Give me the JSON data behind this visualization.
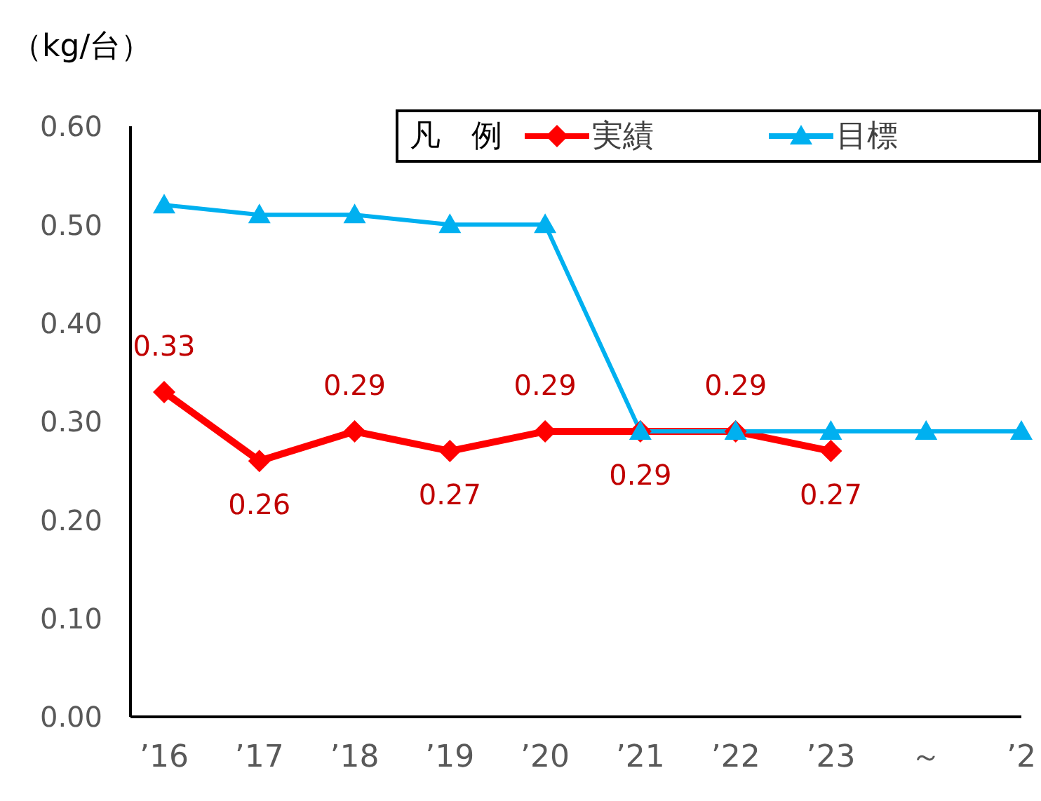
{
  "chart_data": {
    "type": "line",
    "ylabel": "（kg/台）",
    "legend_title": "凡　例",
    "legend": "top right",
    "categories": [
      "’16",
      "’17",
      "’18",
      "’19",
      "’20",
      "’21",
      "’22",
      "’23",
      "～",
      "’2"
    ],
    "series": [
      {
        "name": "実績",
        "color": "#ff0000",
        "marker": "diamond",
        "data_labels": true,
        "values": [
          0.33,
          0.26,
          0.29,
          0.27,
          0.29,
          0.29,
          0.29,
          0.27,
          null,
          null
        ]
      },
      {
        "name": "目標",
        "color": "#00b0f0",
        "marker": "triangle",
        "values": [
          0.52,
          0.51,
          0.51,
          0.5,
          0.5,
          0.29,
          0.29,
          0.29,
          0.29,
          0.29
        ]
      }
    ],
    "ylim": [
      0,
      0.6
    ],
    "yticks": [
      {
        "value": 0,
        "label": "0.00"
      },
      {
        "value": 0.1,
        "label": "0.10"
      },
      {
        "value": 0.2,
        "label": "0.20"
      },
      {
        "value": 0.3,
        "label": "0.30"
      },
      {
        "value": 0.4,
        "label": "0.40"
      },
      {
        "value": 0.5,
        "label": "0.50"
      },
      {
        "value": 0.6,
        "label": "0.60"
      }
    ],
    "grid": false
  }
}
